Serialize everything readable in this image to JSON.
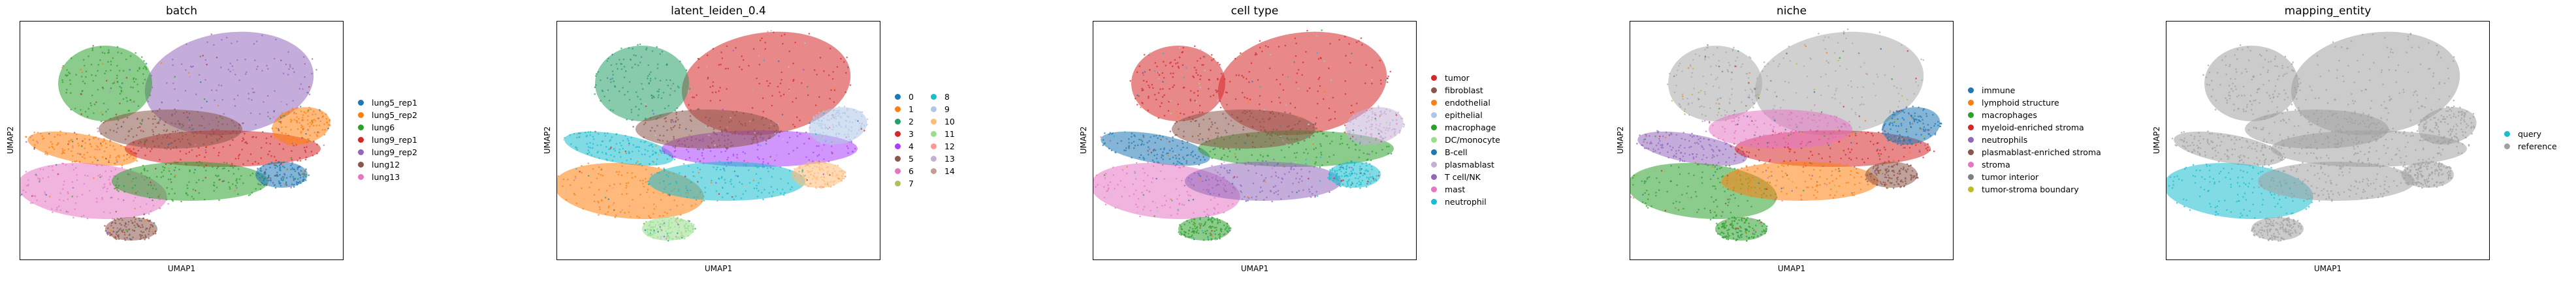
{
  "chart_data": [
    {
      "type": "scatter",
      "title": "batch",
      "xlabel": "UMAP1",
      "ylabel": "UMAP2",
      "grid": false,
      "legend": "right",
      "legend_columns": 1,
      "categories": [
        "lung5_rep1",
        "lung5_rep2",
        "lung6",
        "lung9_rep1",
        "lung9_rep2",
        "lung12",
        "lung13"
      ],
      "colors": [
        "#1f77b4",
        "#ff7f0e",
        "#2ca02c",
        "#d62728",
        "#9467bd",
        "#8c564b",
        "#e377c2"
      ]
    },
    {
      "type": "scatter",
      "title": "latent_leiden_0.4",
      "xlabel": "UMAP1",
      "ylabel": "UMAP2",
      "grid": false,
      "legend": "right",
      "legend_columns": 2,
      "categories": [
        "0",
        "1",
        "2",
        "3",
        "4",
        "5",
        "6",
        "7",
        "8",
        "9",
        "10",
        "11",
        "12",
        "13",
        "14"
      ],
      "colors": [
        "#1f77b4",
        "#ff7f0e",
        "#279e68",
        "#d62728",
        "#aa40fc",
        "#8c564b",
        "#e377c2",
        "#b5bd61",
        "#17becf",
        "#aec7e8",
        "#ffbb78",
        "#98df8a",
        "#ff9896",
        "#c5b0d5",
        "#c49c94"
      ]
    },
    {
      "type": "scatter",
      "title": "cell type",
      "xlabel": "UMAP1",
      "ylabel": "UMAP2",
      "grid": false,
      "legend": "right",
      "legend_columns": 1,
      "categories": [
        "tumor",
        "fibroblast",
        "endothelial",
        "epithelial",
        "macrophage",
        "DC/monocyte",
        "B-cell",
        "plasmablast",
        "T cell/NK",
        "mast",
        "neutrophil"
      ],
      "colors": [
        "#d62728",
        "#8c564b",
        "#ff7f0e",
        "#aec7e8",
        "#2ca02c",
        "#98df8a",
        "#1f77b4",
        "#c5b0d5",
        "#9467bd",
        "#e377c2",
        "#17becf"
      ]
    },
    {
      "type": "scatter",
      "title": "niche",
      "xlabel": "UMAP1",
      "ylabel": "UMAP2",
      "grid": false,
      "legend": "right",
      "legend_columns": 1,
      "categories": [
        "immune",
        "lymphoid structure",
        "macrophages",
        "myeloid-enriched stroma",
        "neutrophils",
        "plasmablast-enriched stroma",
        "stroma",
        "tumor interior",
        "tumor-stroma boundary"
      ],
      "colors": [
        "#1f77b4",
        "#ff7f0e",
        "#2ca02c",
        "#d62728",
        "#9467bd",
        "#8c564b",
        "#e377c2",
        "#7f7f7f",
        "#bcbd22"
      ]
    },
    {
      "type": "scatter",
      "title": "mapping_entity",
      "xlabel": "UMAP1",
      "ylabel": "UMAP2",
      "grid": false,
      "legend": "right",
      "legend_columns": 1,
      "categories": [
        "query",
        "reference"
      ],
      "colors": [
        "#17becf",
        "#a0a0a0"
      ]
    }
  ]
}
